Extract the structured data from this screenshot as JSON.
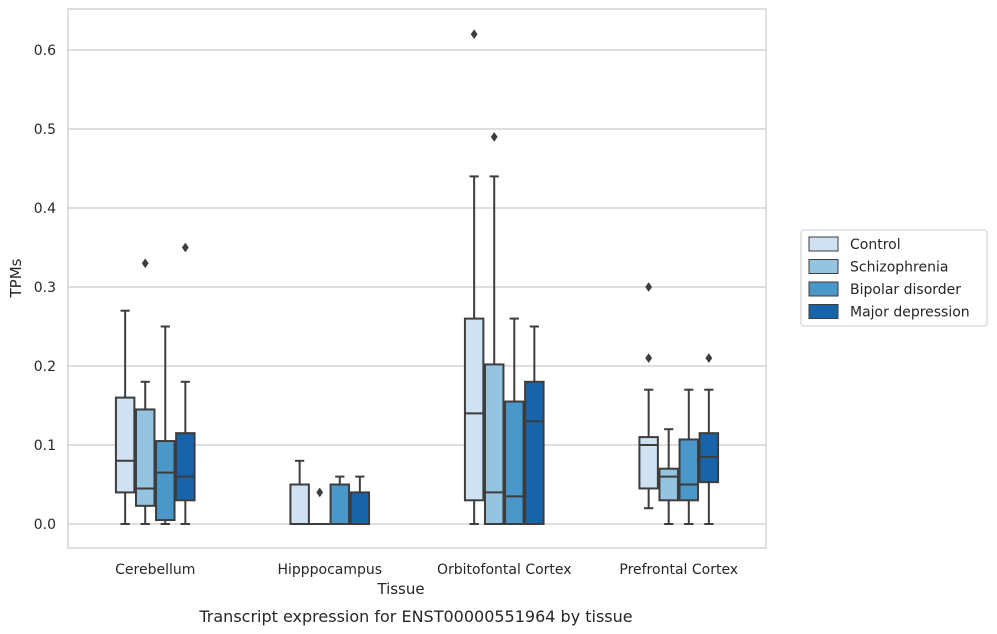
{
  "chart_data": {
    "type": "box",
    "caption": "Transcript expression for ENST00000551964 by tissue",
    "xlabel": "Tissue",
    "ylabel": "TPMs",
    "ylim": [
      -0.03,
      0.655
    ],
    "yticks": [
      0.0,
      0.1,
      0.2,
      0.3,
      0.4,
      0.5,
      0.6
    ],
    "ytick_labels": [
      "0.0",
      "0.1",
      "0.2",
      "0.3",
      "0.4",
      "0.5",
      "0.6"
    ],
    "grid": true,
    "legend_position": "right",
    "categories": [
      "Cerebellum",
      "Hipppocampus",
      "Orbitofontal Cortex",
      "Prefrontal Cortex"
    ],
    "series": [
      {
        "name": "Control",
        "color": "#d0e1f2",
        "boxes": [
          {
            "whislo": 0.0,
            "q1": 0.04,
            "med": 0.08,
            "q3": 0.16,
            "whishi": 0.27,
            "fliers": []
          },
          {
            "whislo": 0.0,
            "q1": 0.0,
            "med": 0.0,
            "q3": 0.05,
            "whishi": 0.08,
            "fliers": []
          },
          {
            "whislo": 0.0,
            "q1": 0.03,
            "med": 0.14,
            "q3": 0.26,
            "whishi": 0.44,
            "fliers": [
              0.62
            ]
          },
          {
            "whislo": 0.02,
            "q1": 0.045,
            "med": 0.1,
            "q3": 0.11,
            "whishi": 0.17,
            "fliers": [
              0.21,
              0.3
            ]
          }
        ]
      },
      {
        "name": "Schizophrenia",
        "color": "#94c4df",
        "boxes": [
          {
            "whislo": 0.0,
            "q1": 0.023,
            "med": 0.045,
            "q3": 0.145,
            "whishi": 0.18,
            "fliers": [
              0.33
            ]
          },
          {
            "whislo": 0.0,
            "q1": 0.0,
            "med": 0.0,
            "q3": 0.0,
            "whishi": 0.0,
            "fliers": [
              0.04
            ]
          },
          {
            "whislo": 0.0,
            "q1": 0.0,
            "med": 0.04,
            "q3": 0.202,
            "whishi": 0.44,
            "fliers": [
              0.49
            ]
          },
          {
            "whislo": 0.0,
            "q1": 0.03,
            "med": 0.06,
            "q3": 0.07,
            "whishi": 0.12,
            "fliers": []
          }
        ]
      },
      {
        "name": "Bipolar disorder",
        "color": "#4a98c9",
        "boxes": [
          {
            "whislo": 0.0,
            "q1": 0.005,
            "med": 0.065,
            "q3": 0.105,
            "whishi": 0.25,
            "fliers": []
          },
          {
            "whislo": 0.0,
            "q1": 0.0,
            "med": 0.0,
            "q3": 0.05,
            "whishi": 0.06,
            "fliers": []
          },
          {
            "whislo": 0.0,
            "q1": 0.0,
            "med": 0.035,
            "q3": 0.155,
            "whishi": 0.26,
            "fliers": []
          },
          {
            "whislo": 0.0,
            "q1": 0.03,
            "med": 0.05,
            "q3": 0.107,
            "whishi": 0.17,
            "fliers": []
          }
        ]
      },
      {
        "name": "Major depression",
        "color": "#1764ab",
        "boxes": [
          {
            "whislo": 0.0,
            "q1": 0.03,
            "med": 0.06,
            "q3": 0.115,
            "whishi": 0.18,
            "fliers": [
              0.35
            ]
          },
          {
            "whislo": 0.0,
            "q1": 0.0,
            "med": 0.0,
            "q3": 0.04,
            "whishi": 0.06,
            "fliers": []
          },
          {
            "whislo": 0.0,
            "q1": 0.0,
            "med": 0.13,
            "q3": 0.18,
            "whishi": 0.25,
            "fliers": []
          },
          {
            "whislo": 0.0,
            "q1": 0.053,
            "med": 0.085,
            "q3": 0.115,
            "whishi": 0.17,
            "fliers": [
              0.21
            ]
          }
        ]
      }
    ]
  }
}
